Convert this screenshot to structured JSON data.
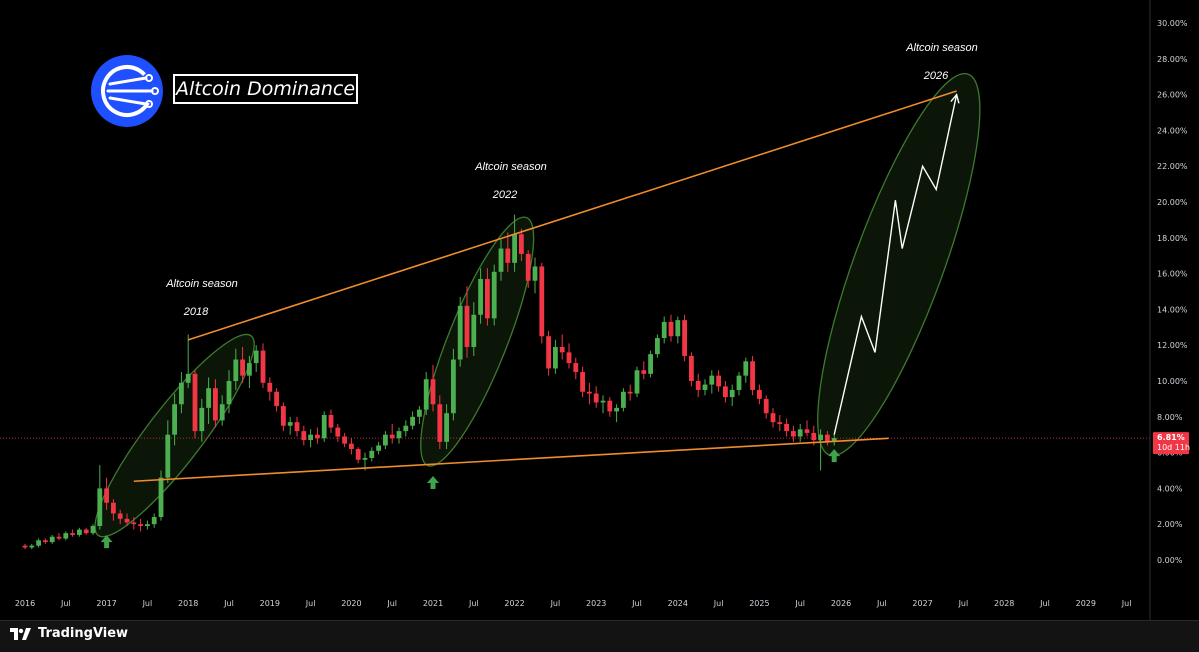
{
  "brand": {
    "name": "TradingView"
  },
  "chart_data": {
    "type": "candlestick",
    "title": "Altcoin Dominance",
    "y_unit": "%",
    "ylim": [
      -0.5,
      30
    ],
    "y_ticks": [
      "30.00%",
      "28.00%",
      "26.00%",
      "24.00%",
      "22.00%",
      "20.00%",
      "18.00%",
      "16.00%",
      "14.00%",
      "12.00%",
      "10.00%",
      "8.00%",
      "6.00%",
      "4.00%",
      "2.00%",
      "0.00%"
    ],
    "x_ticks": [
      "2016",
      "Jul",
      "2017",
      "Jul",
      "2018",
      "Jul",
      "2019",
      "Jul",
      "2020",
      "Jul",
      "2021",
      "Jul",
      "2022",
      "Jul",
      "2023",
      "Jul",
      "2024",
      "Jul",
      "2025",
      "Jul",
      "2026",
      "Jul",
      "2027",
      "Jul",
      "2028",
      "Jul",
      "2029",
      "Jul"
    ],
    "current_price": {
      "value": "6.81%",
      "countdown": "10d 11h",
      "color": "#f23645"
    },
    "colors": {
      "up": "#4caf50",
      "down": "#f23645",
      "trendline": "#f08c2c",
      "zone": "#3d7a2e",
      "projection": "#ffffff",
      "arrow": "#3fa34d"
    },
    "annotations": [
      {
        "label": "Altcoin season",
        "year": "2018"
      },
      {
        "label": "Altcoin season",
        "year": "2022"
      },
      {
        "label": "Altcoin season",
        "year": "2026"
      }
    ],
    "trendlines": [
      {
        "name": "upper",
        "from": [
          "2018-01",
          12.3
        ],
        "to": [
          "2027-06",
          26.2
        ]
      },
      {
        "name": "lower",
        "from": [
          "2017-05",
          4.4
        ],
        "to": [
          "2026-08",
          6.8
        ]
      }
    ],
    "projection": [
      [
        "2025-12",
        7.0
      ],
      [
        "2026-04",
        13.6
      ],
      [
        "2026-06",
        11.6
      ],
      [
        "2026-09",
        20.1
      ],
      [
        "2026-10",
        17.4
      ],
      [
        "2027-01",
        22.0
      ],
      [
        "2027-03",
        20.7
      ],
      [
        "2027-06",
        26.0
      ]
    ],
    "bottom_arrows": [
      "2017-01",
      "2021-01",
      "2025-12"
    ],
    "candles": [
      [
        "2016-01",
        0.8,
        0.9,
        0.6,
        0.7
      ],
      [
        "2016-02",
        0.7,
        0.9,
        0.6,
        0.8
      ],
      [
        "2016-03",
        0.8,
        1.2,
        0.7,
        1.1
      ],
      [
        "2016-04",
        1.1,
        1.2,
        0.9,
        1.0
      ],
      [
        "2016-05",
        1.0,
        1.4,
        0.9,
        1.3
      ],
      [
        "2016-06",
        1.3,
        1.5,
        1.1,
        1.2
      ],
      [
        "2016-07",
        1.2,
        1.6,
        1.1,
        1.5
      ],
      [
        "2016-08",
        1.5,
        1.7,
        1.3,
        1.4
      ],
      [
        "2016-09",
        1.4,
        1.8,
        1.3,
        1.7
      ],
      [
        "2016-10",
        1.7,
        1.8,
        1.4,
        1.5
      ],
      [
        "2016-11",
        1.5,
        2.0,
        1.4,
        1.9
      ],
      [
        "2016-12",
        1.9,
        5.3,
        1.7,
        4.0
      ],
      [
        "2017-01",
        4.0,
        4.6,
        2.8,
        3.2
      ],
      [
        "2017-02",
        3.2,
        3.4,
        2.2,
        2.6
      ],
      [
        "2017-03",
        2.6,
        2.8,
        2.0,
        2.3
      ],
      [
        "2017-04",
        2.3,
        2.6,
        1.9,
        2.1
      ],
      [
        "2017-05",
        2.1,
        2.4,
        1.7,
        2.0
      ],
      [
        "2017-06",
        2.0,
        2.3,
        1.6,
        1.9
      ],
      [
        "2017-07",
        1.9,
        2.2,
        1.7,
        2.0
      ],
      [
        "2017-08",
        2.0,
        2.6,
        1.8,
        2.4
      ],
      [
        "2017-09",
        2.4,
        5.0,
        2.2,
        4.6
      ],
      [
        "2017-10",
        4.6,
        7.8,
        4.3,
        7.0
      ],
      [
        "2017-11",
        7.0,
        9.3,
        6.4,
        8.7
      ],
      [
        "2017-12",
        8.7,
        10.5,
        8.2,
        9.9
      ],
      [
        "2018-01",
        9.9,
        12.6,
        9.6,
        10.4
      ],
      [
        "2018-02",
        10.4,
        10.6,
        6.8,
        7.2
      ],
      [
        "2018-03",
        7.2,
        9.0,
        6.6,
        8.5
      ],
      [
        "2018-04",
        8.5,
        10.2,
        7.6,
        9.6
      ],
      [
        "2018-05",
        9.6,
        10.1,
        7.4,
        7.8
      ],
      [
        "2018-06",
        7.8,
        9.2,
        7.5,
        8.7
      ],
      [
        "2018-07",
        8.7,
        10.6,
        8.2,
        10.0
      ],
      [
        "2018-08",
        10.0,
        11.8,
        9.5,
        11.2
      ],
      [
        "2018-09",
        11.2,
        11.9,
        9.9,
        10.3
      ],
      [
        "2018-10",
        10.3,
        11.4,
        9.6,
        11.0
      ],
      [
        "2018-11",
        11.0,
        12.0,
        10.5,
        11.7
      ],
      [
        "2018-12",
        11.7,
        12.1,
        9.6,
        9.9
      ],
      [
        "2019-01",
        9.9,
        10.2,
        8.9,
        9.4
      ],
      [
        "2019-02",
        9.4,
        9.6,
        8.3,
        8.6
      ],
      [
        "2019-03",
        8.6,
        8.8,
        7.2,
        7.5
      ],
      [
        "2019-04",
        7.5,
        8.0,
        7.0,
        7.7
      ],
      [
        "2019-05",
        7.7,
        8.0,
        6.9,
        7.2
      ],
      [
        "2019-06",
        7.2,
        7.5,
        6.4,
        6.7
      ],
      [
        "2019-07",
        6.7,
        7.3,
        6.3,
        7.0
      ],
      [
        "2019-08",
        7.0,
        7.4,
        6.5,
        6.8
      ],
      [
        "2019-09",
        6.8,
        8.3,
        6.6,
        8.1
      ],
      [
        "2019-10",
        8.1,
        8.4,
        7.1,
        7.4
      ],
      [
        "2019-11",
        7.4,
        7.6,
        6.6,
        6.9
      ],
      [
        "2019-12",
        6.9,
        7.1,
        6.3,
        6.5
      ],
      [
        "2020-01",
        6.5,
        6.8,
        5.9,
        6.2
      ],
      [
        "2020-02",
        6.2,
        6.3,
        5.4,
        5.6
      ],
      [
        "2020-03",
        5.6,
        6.0,
        5.0,
        5.7
      ],
      [
        "2020-04",
        5.7,
        6.3,
        5.5,
        6.1
      ],
      [
        "2020-05",
        6.1,
        6.6,
        5.9,
        6.4
      ],
      [
        "2020-06",
        6.4,
        7.2,
        6.2,
        7.0
      ],
      [
        "2020-07",
        7.0,
        7.6,
        6.5,
        6.8
      ],
      [
        "2020-08",
        6.8,
        7.4,
        6.5,
        7.2
      ],
      [
        "2020-09",
        7.2,
        7.8,
        6.9,
        7.5
      ],
      [
        "2020-10",
        7.5,
        8.3,
        7.3,
        8.0
      ],
      [
        "2020-11",
        8.0,
        8.6,
        7.6,
        8.4
      ],
      [
        "2020-12",
        8.4,
        10.5,
        8.1,
        10.1
      ],
      [
        "2021-01",
        10.1,
        10.9,
        8.3,
        8.7
      ],
      [
        "2021-02",
        8.7,
        9.2,
        6.2,
        6.6
      ],
      [
        "2021-03",
        6.6,
        8.7,
        6.2,
        8.2
      ],
      [
        "2021-04",
        8.2,
        11.8,
        7.8,
        11.2
      ],
      [
        "2021-05",
        11.2,
        14.7,
        10.8,
        14.2
      ],
      [
        "2021-06",
        14.2,
        15.3,
        11.3,
        11.9
      ],
      [
        "2021-07",
        11.9,
        14.4,
        11.4,
        13.7
      ],
      [
        "2021-08",
        13.7,
        16.3,
        13.2,
        15.7
      ],
      [
        "2021-09",
        15.7,
        16.3,
        13.1,
        13.5
      ],
      [
        "2021-10",
        13.5,
        16.5,
        13.1,
        16.1
      ],
      [
        "2021-11",
        16.1,
        17.9,
        15.6,
        17.4
      ],
      [
        "2021-12",
        17.4,
        18.3,
        16.1,
        16.6
      ],
      [
        "2022-01",
        16.6,
        19.3,
        16.1,
        18.2
      ],
      [
        "2022-02",
        18.2,
        18.5,
        16.7,
        17.1
      ],
      [
        "2022-03",
        17.1,
        17.3,
        15.2,
        15.6
      ],
      [
        "2022-04",
        15.6,
        16.9,
        14.9,
        16.4
      ],
      [
        "2022-05",
        16.4,
        16.6,
        12.1,
        12.5
      ],
      [
        "2022-06",
        12.5,
        12.8,
        10.3,
        10.7
      ],
      [
        "2022-07",
        10.7,
        12.3,
        10.4,
        11.9
      ],
      [
        "2022-08",
        11.9,
        12.6,
        11.2,
        11.6
      ],
      [
        "2022-09",
        11.6,
        12.1,
        10.7,
        11.0
      ],
      [
        "2022-10",
        11.0,
        11.3,
        10.1,
        10.5
      ],
      [
        "2022-11",
        10.5,
        10.8,
        9.1,
        9.4
      ],
      [
        "2022-12",
        9.4,
        9.9,
        8.7,
        9.3
      ],
      [
        "2023-01",
        9.3,
        9.7,
        8.5,
        8.8
      ],
      [
        "2023-02",
        8.8,
        9.2,
        8.2,
        8.9
      ],
      [
        "2023-03",
        8.9,
        9.1,
        8.0,
        8.3
      ],
      [
        "2023-04",
        8.3,
        8.7,
        7.7,
        8.5
      ],
      [
        "2023-05",
        8.5,
        9.6,
        8.3,
        9.4
      ],
      [
        "2023-06",
        9.4,
        9.8,
        8.9,
        9.3
      ],
      [
        "2023-07",
        9.3,
        10.8,
        9.1,
        10.6
      ],
      [
        "2023-08",
        10.6,
        11.1,
        10.1,
        10.4
      ],
      [
        "2023-09",
        10.4,
        11.7,
        10.2,
        11.5
      ],
      [
        "2023-10",
        11.5,
        12.6,
        11.3,
        12.4
      ],
      [
        "2023-11",
        12.4,
        13.6,
        12.1,
        13.3
      ],
      [
        "2023-12",
        13.3,
        13.7,
        12.2,
        12.5
      ],
      [
        "2024-01",
        12.5,
        13.6,
        12.1,
        13.4
      ],
      [
        "2024-02",
        13.4,
        13.7,
        11.1,
        11.4
      ],
      [
        "2024-03",
        11.4,
        11.6,
        9.7,
        10.0
      ],
      [
        "2024-04",
        10.0,
        10.4,
        9.1,
        9.5
      ],
      [
        "2024-05",
        9.5,
        10.1,
        9.2,
        9.8
      ],
      [
        "2024-06",
        9.8,
        10.6,
        9.3,
        10.3
      ],
      [
        "2024-07",
        10.3,
        10.6,
        9.4,
        9.7
      ],
      [
        "2024-08",
        9.7,
        10.0,
        8.8,
        9.1
      ],
      [
        "2024-09",
        9.1,
        9.8,
        8.6,
        9.5
      ],
      [
        "2024-10",
        9.5,
        10.5,
        9.2,
        10.3
      ],
      [
        "2024-11",
        10.3,
        11.3,
        9.9,
        11.1
      ],
      [
        "2024-12",
        11.1,
        11.4,
        9.2,
        9.5
      ],
      [
        "2025-01",
        9.5,
        9.8,
        8.7,
        9.0
      ],
      [
        "2025-02",
        9.0,
        9.2,
        7.9,
        8.2
      ],
      [
        "2025-03",
        8.2,
        8.5,
        7.4,
        7.7
      ],
      [
        "2025-04",
        7.7,
        8.1,
        7.2,
        7.6
      ],
      [
        "2025-05",
        7.6,
        7.9,
        6.9,
        7.2
      ],
      [
        "2025-06",
        7.2,
        7.5,
        6.6,
        6.9
      ],
      [
        "2025-07",
        6.9,
        7.6,
        6.6,
        7.3
      ],
      [
        "2025-08",
        7.3,
        7.8,
        6.9,
        7.1
      ],
      [
        "2025-09",
        7.1,
        7.5,
        6.4,
        6.7
      ],
      [
        "2025-10",
        6.7,
        7.3,
        5.0,
        7.0
      ],
      [
        "2025-11",
        7.0,
        7.2,
        6.4,
        6.6
      ],
      [
        "2025-12",
        6.6,
        7.0,
        6.4,
        6.81
      ]
    ]
  }
}
